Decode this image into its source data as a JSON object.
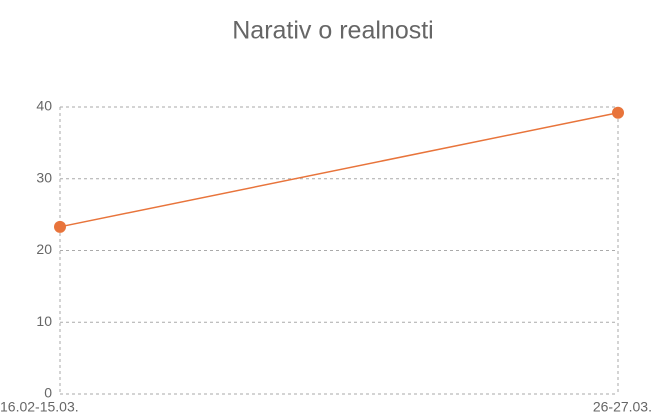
{
  "chart_data": {
    "type": "line",
    "title": "Narativ o realnosti",
    "categories": [
      "16.02-15.03.",
      "26-27.03."
    ],
    "series": [
      {
        "name": "Narativ o realnosti",
        "color": "#e8743b",
        "values": [
          23.3,
          39.2
        ]
      }
    ],
    "ylim": [
      0,
      40
    ],
    "yticks": [
      0,
      10,
      20,
      30,
      40
    ],
    "grid": true
  }
}
